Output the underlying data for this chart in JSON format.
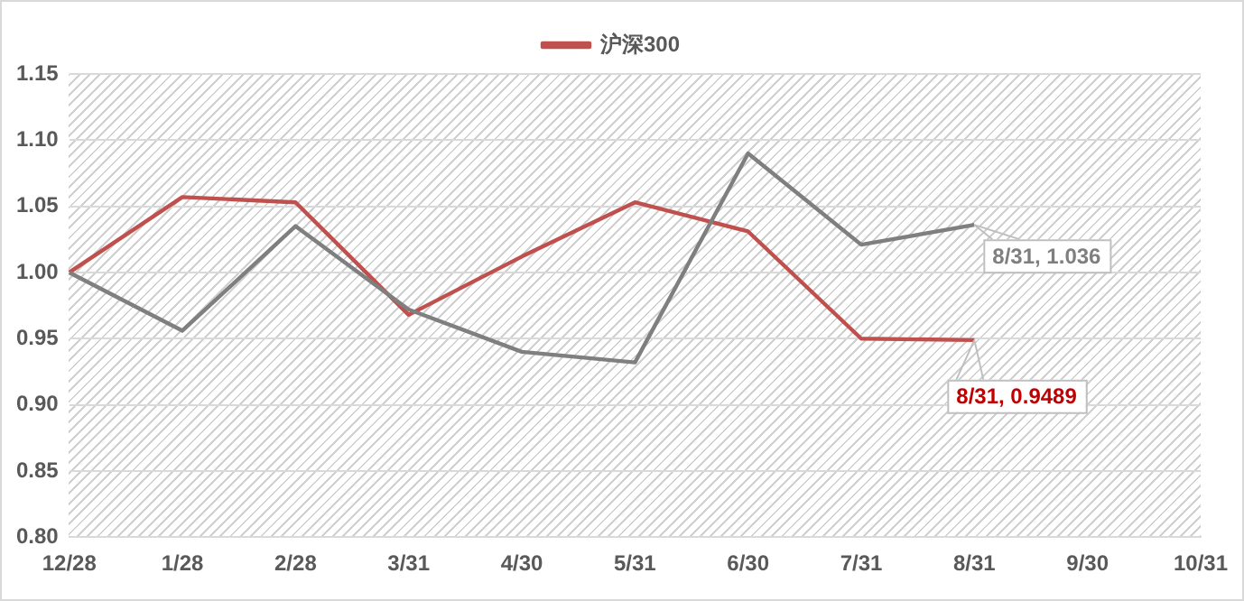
{
  "chart_data": {
    "type": "line",
    "categories": [
      "12/28",
      "1/28",
      "2/28",
      "3/31",
      "4/30",
      "5/31",
      "6/30",
      "7/31",
      "8/31",
      "9/30",
      "10/31"
    ],
    "series": [
      {
        "color": "#7f7f7f",
        "values": [
          1.0,
          0.956,
          1.035,
          0.972,
          0.94,
          0.932,
          1.09,
          1.021,
          1.036,
          null,
          null
        ]
      },
      {
        "name": "沪深300",
        "color": "#c0504d",
        "values": [
          1.0,
          1.057,
          1.053,
          0.968,
          1.012,
          1.053,
          1.031,
          0.95,
          0.9489,
          null,
          null
        ]
      }
    ],
    "ylim": [
      0.8,
      1.15
    ],
    "yticks": [
      {
        "value": 0.8,
        "label": "0.80"
      },
      {
        "value": 0.85,
        "label": "0.85"
      },
      {
        "value": 0.9,
        "label": "0.90"
      },
      {
        "value": 0.95,
        "label": "0.95"
      },
      {
        "value": 1.0,
        "label": "1.00"
      },
      {
        "value": 1.05,
        "label": "1.05"
      },
      {
        "value": 1.1,
        "label": "1.10"
      },
      {
        "value": 1.15,
        "label": "1.15"
      }
    ],
    "annotations": [
      {
        "text": "8/31, 1.036",
        "x": "8/31",
        "y": 1.036
      },
      {
        "text": "8/31, 0.9489",
        "x": "8/31",
        "y": 0.9489
      }
    ],
    "grid": "y",
    "legend": "top",
    "marker": "none",
    "line_style": "solid"
  }
}
